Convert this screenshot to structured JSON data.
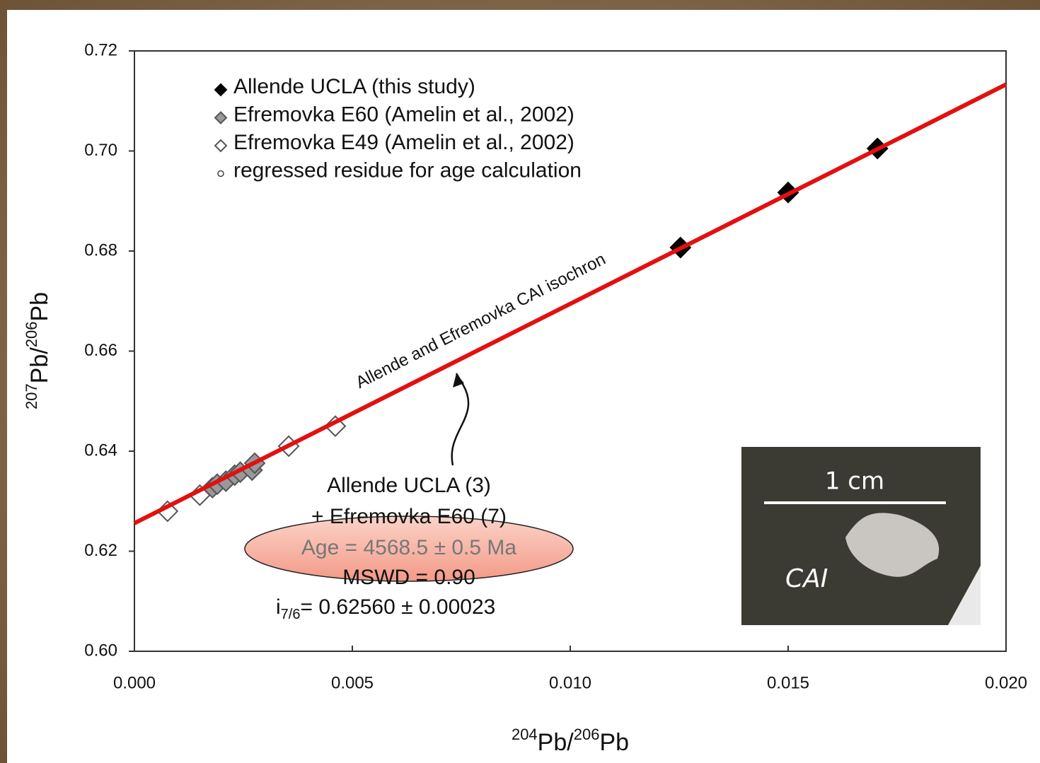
{
  "chart_data": {
    "type": "scatter",
    "xlabel": {
      "sup1": "204",
      "t1": "Pb/",
      "sup2": "206",
      "t2": "Pb"
    },
    "ylabel": {
      "sup1": "207",
      "t1": "Pb/",
      "sup2": "206",
      "t2": "Pb"
    },
    "xlim": [
      0,
      0.02
    ],
    "ylim": [
      0.6,
      0.72
    ],
    "xticks": [
      {
        "value": 0,
        "label": "0.000"
      },
      {
        "value": 0.005,
        "label": "0.005"
      },
      {
        "value": 0.01,
        "label": "0.010"
      },
      {
        "value": 0.015,
        "label": "0.015"
      },
      {
        "value": 0.02,
        "label": "0.020"
      }
    ],
    "yticks": [
      {
        "value": 0.6,
        "label": "0.60"
      },
      0.62,
      0.64,
      0.66,
      0.68,
      {
        "value": 0.7,
        "label": "0.70"
      },
      0.72
    ],
    "series": [
      {
        "name": "Allende UCLA (this study)",
        "marker": "diamond",
        "color": "#000000",
        "x": [
          0.01253,
          0.015,
          0.01705
        ],
        "values": [
          0.6807,
          0.6917,
          0.7005
        ]
      },
      {
        "name": "Efremovka E60 (Amelin et al., 2002)",
        "marker": "diamond",
        "color": "#999999",
        "x": [
          0.00179,
          0.0019,
          0.0021,
          0.0023,
          0.00243,
          0.0027,
          0.00276
        ],
        "values": [
          0.6327,
          0.6334,
          0.634,
          0.6352,
          0.6358,
          0.6362,
          0.6376
        ]
      },
      {
        "name": "Efremovka E49 (Amelin et al., 2002)",
        "marker": "diamond",
        "color": "#ffffff",
        "x": [
          0.00076,
          0.0015,
          0.00354,
          0.00461
        ],
        "values": [
          0.628,
          0.6312,
          0.641,
          0.645
        ]
      },
      {
        "name": "regressed residue for age calculation",
        "marker": "circle",
        "color": "#ffffff",
        "x": [],
        "values": []
      }
    ],
    "fit": {
      "color": "#e31010",
      "x": [
        0,
        0.02
      ],
      "values": [
        0.6256,
        0.7133
      ]
    },
    "isochron_label": "Allende and Efremovka CAI isochron",
    "result": {
      "line1": "Allende UCLA (3)",
      "line2": "+ Efremovka E60 (7)",
      "age": "Age = 4568.5 ± 0.5 Ma",
      "mswd": "MSWD = 0.90",
      "i_main": "i",
      "i_sub": "7/6",
      "i_rest": "= 0.62560 ± 0.00023"
    },
    "inset": {
      "scale": "1 cm",
      "label": "CAI"
    }
  }
}
